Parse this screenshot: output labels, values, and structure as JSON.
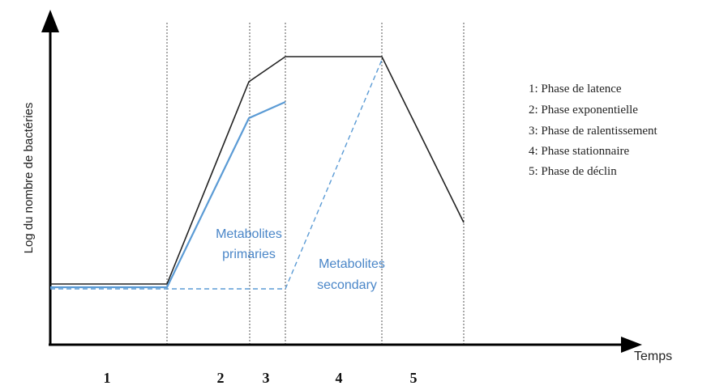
{
  "axes": {
    "ylabel": "Log du nombre de bactéries",
    "xlabel": "Temps"
  },
  "phase_numbers": [
    "1",
    "2",
    "3",
    "4",
    "5"
  ],
  "legend": [
    "1: Phase de latence",
    "2: Phase exponentielle",
    "3: Phase de ralentissement",
    "4: Phase stationnaire",
    "5: Phase de déclin"
  ],
  "annotations": {
    "primary_line1": "Metabolites",
    "primary_line2": "primaries",
    "secondary_line1": "Metabolites",
    "secondary_line2": "secondary"
  },
  "colors": {
    "axis": "#000000",
    "growth_curve": "#222222",
    "primary_metabolites": "#5b9bd5",
    "secondary_metabolites": "#5b9bd5",
    "phase_divider": "#555555",
    "annotation_text": "#4a86c8"
  }
}
